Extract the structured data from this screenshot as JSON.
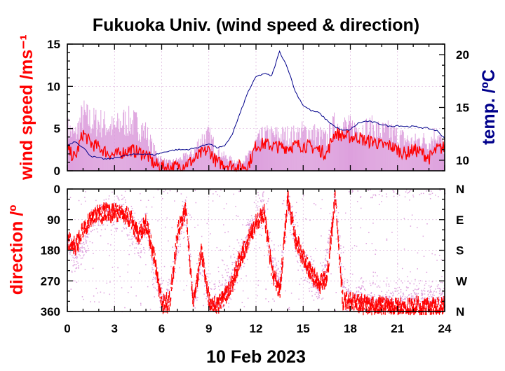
{
  "chart_data": [
    {
      "type": "line",
      "panel": "upper",
      "title": "Fukuoka Univ. (wind speed & direction)",
      "ylabel": "wind speed /ms⁻¹",
      "y2label": "temp. /ºC",
      "xlim": [
        0,
        24
      ],
      "ylim": [
        0,
        15
      ],
      "y2lim": [
        9,
        21
      ],
      "yticks": [
        "0",
        "5",
        "10",
        "15"
      ],
      "y2ticks": [
        "10",
        "15",
        "20"
      ],
      "grid": true,
      "series": [
        {
          "role": "wind speed (instantaneous range)",
          "color": "#dda0dd",
          "x": [
            0,
            0.5,
            1,
            1.5,
            2,
            2.5,
            3,
            3.5,
            4,
            4.5,
            5,
            5.5,
            6,
            6.5,
            7,
            7.5,
            8,
            8.5,
            9,
            9.5,
            10,
            10.5,
            11,
            11.5,
            12,
            12.5,
            13,
            13.5,
            14,
            14.5,
            15,
            15.5,
            16,
            16.5,
            17,
            17.5,
            18,
            18.5,
            19,
            19.5,
            20,
            20.5,
            21,
            21.5,
            22,
            22.5,
            23,
            23.5,
            24
          ],
          "values": [
            6,
            5,
            8,
            7,
            7,
            6.5,
            6,
            7,
            7,
            6.5,
            5.5,
            3,
            1.5,
            1.2,
            1.5,
            2,
            2.5,
            4.5,
            5,
            3,
            2,
            1.5,
            1.2,
            2,
            4,
            5,
            5,
            5,
            5,
            5,
            5.5,
            5.5,
            5,
            4.5,
            6.5,
            6.5,
            6,
            6,
            6,
            6,
            5.5,
            5.5,
            5,
            4.5,
            4,
            4.5,
            4,
            5.5,
            3
          ]
        },
        {
          "role": "wind speed (mean)",
          "color": "#ff0000",
          "x": [
            0,
            0.5,
            1,
            1.5,
            2,
            2.5,
            3,
            3.5,
            4,
            4.5,
            5,
            5.5,
            6,
            6.5,
            7,
            7.5,
            8,
            8.5,
            9,
            9.5,
            10,
            10.5,
            11,
            11.5,
            12,
            12.5,
            13,
            13.5,
            14,
            14.5,
            15,
            15.5,
            16,
            16.5,
            17,
            17.5,
            18,
            18.5,
            19,
            19.5,
            20,
            20.5,
            21,
            21.5,
            22,
            22.5,
            23,
            23.5,
            24
          ],
          "values": [
            2.5,
            1.5,
            4.5,
            3.2,
            2.8,
            2.2,
            1.8,
            2.2,
            2.5,
            2.2,
            2,
            0.8,
            0.5,
            0.4,
            0.5,
            0.8,
            1.2,
            2,
            2.5,
            1,
            0.8,
            0.6,
            0.5,
            0.6,
            3,
            3.2,
            3,
            2.8,
            2.8,
            3,
            3,
            2.8,
            2.5,
            2,
            4.5,
            4.2,
            4,
            4,
            3.5,
            3.5,
            3,
            3,
            2.5,
            2,
            2.5,
            2.2,
            1.5,
            2.5,
            2.8
          ]
        },
        {
          "role": "temperature",
          "axis": "right",
          "color": "#00008b",
          "x": [
            0,
            0.5,
            1,
            1.5,
            2,
            2.5,
            3,
            3.5,
            4,
            4.5,
            5,
            5.5,
            6,
            6.5,
            7,
            7.5,
            8,
            8.5,
            9,
            9.5,
            10,
            10.5,
            11,
            11.5,
            12,
            12.5,
            13,
            13.5,
            14,
            14.5,
            15,
            15.5,
            16,
            16.5,
            17,
            17.5,
            18,
            18.5,
            19,
            19.5,
            20,
            20.5,
            21,
            21.5,
            22,
            22.5,
            23,
            23.5,
            24
          ],
          "values": [
            11.4,
            11.8,
            11.2,
            10.4,
            10.2,
            10.1,
            10.2,
            10.4,
            10.5,
            10.6,
            10.6,
            10.5,
            10.7,
            10.9,
            11,
            11,
            11.1,
            11.3,
            11.6,
            11.2,
            11.3,
            12.5,
            14.5,
            16.5,
            17.9,
            18.2,
            18,
            20.3,
            18.8,
            16.5,
            15.2,
            14.7,
            14.5,
            13.8,
            13.2,
            12.8,
            12.9,
            13.5,
            13.7,
            13.6,
            13.4,
            13.2,
            13.3,
            13.2,
            13.2,
            13.1,
            13,
            12.8,
            12.1
          ]
        }
      ]
    },
    {
      "type": "scatter",
      "panel": "lower",
      "ylabel": "direction /º",
      "xlabel": "10 Feb 2023",
      "xlim": [
        0,
        24
      ],
      "ylim": [
        0,
        360
      ],
      "y_reversed": true,
      "xticks": [
        "0",
        "3",
        "6",
        "9",
        "12",
        "15",
        "18",
        "21",
        "24"
      ],
      "yticks": [
        "0",
        "90",
        "180",
        "270",
        "360"
      ],
      "y2ticks": [
        "N",
        "E",
        "S",
        "W",
        "N"
      ],
      "grid": true,
      "series": [
        {
          "role": "wind direction (instantaneous)",
          "color": "#dda0dd",
          "x": [
            0,
            0.5,
            1,
            1.5,
            2,
            2.5,
            3,
            3.5,
            4,
            4.5,
            5,
            5.5,
            6,
            6.5,
            7,
            7.5,
            8,
            8.5,
            9,
            9.5,
            10,
            10.5,
            11,
            11.5,
            12,
            12.5,
            13,
            13.5,
            14,
            14.5,
            15,
            15.5,
            16,
            16.5,
            17,
            17.5,
            18,
            18.5,
            19,
            19.5,
            20,
            20.5,
            21,
            21.5,
            22,
            22.5,
            23,
            23.5,
            24
          ],
          "values": [
            150,
            200,
            170,
            100,
            80,
            65,
            60,
            70,
            100,
            160,
            90,
            250,
            320,
            300,
            150,
            60,
            330,
            200,
            340,
            330,
            300,
            250,
            200,
            120,
            80,
            60,
            220,
            270,
            40,
            150,
            210,
            260,
            300,
            200,
            30,
            280,
            310,
            320,
            320,
            320,
            330,
            330,
            330,
            320,
            320,
            320,
            330,
            320,
            310
          ]
        },
        {
          "role": "wind direction (mean)",
          "color": "#ff0000",
          "x": [
            0,
            0.5,
            1,
            1.5,
            2,
            2.5,
            3,
            3.5,
            4,
            4.5,
            5,
            5.5,
            6,
            6.5,
            7,
            7.5,
            8,
            8.5,
            9,
            9.5,
            10,
            10.5,
            11,
            11.5,
            12,
            12.5,
            13,
            13.5,
            14,
            14.5,
            15,
            15.5,
            16,
            16.5,
            17,
            17.5,
            18,
            18.5,
            19,
            19.5,
            20,
            20.5,
            21,
            21.5,
            22,
            22.5,
            23,
            23.5,
            24
          ],
          "values": [
            150,
            170,
            120,
            90,
            75,
            70,
            68,
            72,
            85,
            140,
            100,
            200,
            340,
            330,
            120,
            60,
            340,
            180,
            330,
            340,
            320,
            270,
            200,
            150,
            100,
            70,
            250,
            300,
            30,
            150,
            200,
            250,
            280,
            260,
            20,
            330,
            330,
            335,
            340,
            345,
            345,
            348,
            350,
            350,
            345,
            345,
            350,
            345,
            340
          ]
        }
      ]
    }
  ],
  "colors": {
    "wind_range": "#dda0dd",
    "wind_mean": "#ff0000",
    "temperature": "#00008b",
    "grid": "#dcb4dc",
    "frame": "#000000"
  }
}
